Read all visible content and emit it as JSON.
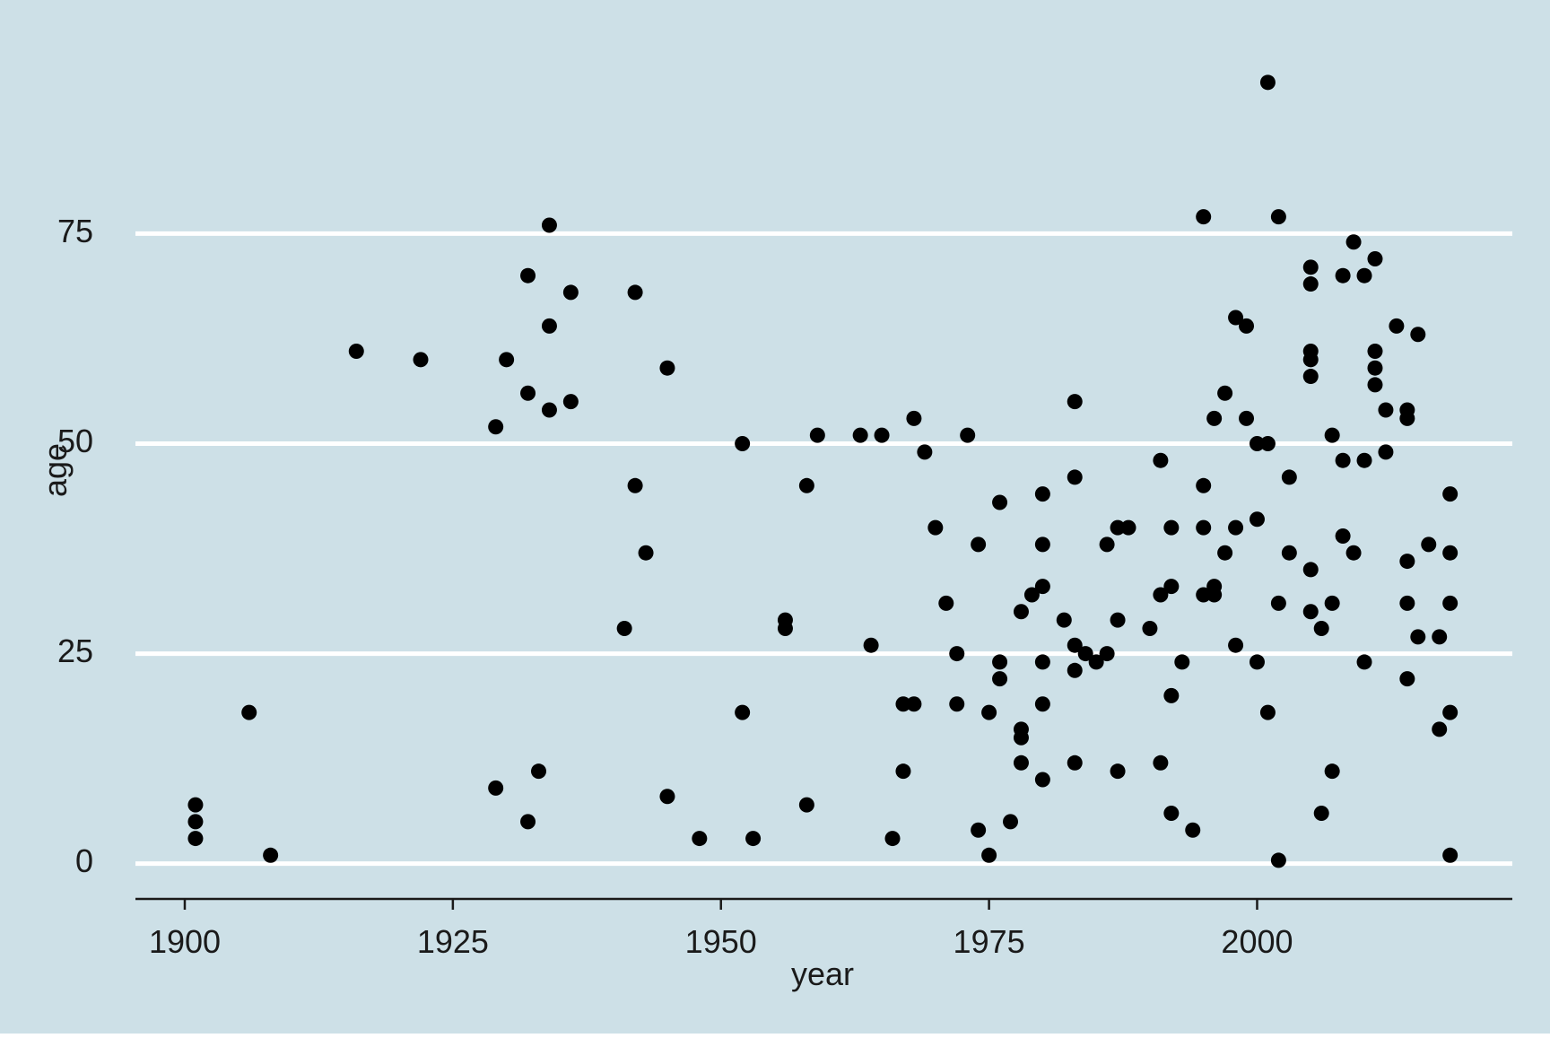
{
  "chart_data": {
    "type": "scatter",
    "x_label": "year",
    "y_label": "age",
    "color": "#000000",
    "background": "#cde0e7",
    "grid": true,
    "xlim": [
      1895.4,
      2023.8
    ],
    "ylim": [
      -4.2,
      98
    ],
    "xticks": [
      1900,
      1925,
      1950,
      1975,
      2000
    ],
    "yticks": [
      0,
      25,
      50,
      75
    ],
    "series": [
      {
        "name": "age",
        "x": [
          1901,
          1901,
          1901,
          1906,
          1908,
          1916,
          1922,
          1929,
          1929,
          1930,
          1932,
          1932,
          1932,
          1933,
          1934,
          1934,
          1934,
          1936,
          1936,
          1941,
          1942,
          1942,
          1943,
          1945,
          1945,
          1948,
          1952,
          1952,
          1953,
          1956,
          1956,
          1958,
          1958,
          1959,
          1963,
          1964,
          1965,
          1966,
          1967,
          1967,
          1968,
          1968,
          1969,
          1970,
          1971,
          1972,
          1972,
          1973,
          1974,
          1974,
          1975,
          1975,
          1976,
          1976,
          1976,
          1977,
          1978,
          1978,
          1978,
          1978,
          1979,
          1980,
          1980,
          1980,
          1980,
          1980,
          1980,
          1982,
          1983,
          1983,
          1983,
          1983,
          1983,
          1984,
          1985,
          1986,
          1986,
          1987,
          1987,
          1987,
          1988,
          1990,
          1991,
          1991,
          1991,
          1992,
          1992,
          1992,
          1992,
          1993,
          1994,
          1995,
          1995,
          1995,
          1995,
          1996,
          1996,
          1996,
          1997,
          1997,
          1998,
          1998,
          1998,
          1999,
          1999,
          2000,
          2000,
          2000,
          2001,
          2001,
          2001,
          2002,
          2002,
          2002,
          2003,
          2003,
          2005,
          2005,
          2005,
          2005,
          2005,
          2005,
          2005,
          2006,
          2006,
          2007,
          2007,
          2007,
          2008,
          2008,
          2008,
          2009,
          2009,
          2010,
          2010,
          2010,
          2011,
          2011,
          2011,
          2011,
          2012,
          2012,
          2013,
          2014,
          2014,
          2014,
          2014,
          2014,
          2015,
          2015,
          2016,
          2017,
          2017,
          2018,
          2018,
          2018,
          2018,
          2018
        ],
        "values": [
          7,
          5,
          3,
          18,
          1,
          61,
          60,
          52,
          9,
          60,
          70,
          56,
          5,
          11,
          76,
          64,
          54,
          68,
          55,
          28,
          68,
          45,
          37,
          59,
          8,
          3,
          50,
          18,
          3,
          29,
          28,
          45,
          7,
          51,
          51,
          26,
          51,
          3,
          19,
          11,
          19,
          53,
          49,
          40,
          31,
          25,
          19,
          51,
          38,
          4,
          18,
          1,
          43,
          24,
          22,
          5,
          30,
          16,
          15,
          12,
          32,
          44,
          38,
          33,
          24,
          19,
          10,
          29,
          55,
          46,
          26,
          23,
          12,
          25,
          24,
          38,
          25,
          40,
          29,
          11,
          40,
          28,
          48,
          32,
          12,
          40,
          33,
          20,
          6,
          24,
          4,
          77,
          45,
          40,
          32,
          53,
          33,
          32,
          56,
          37,
          65,
          40,
          26,
          64,
          53,
          50,
          41,
          24,
          93,
          50,
          18,
          77,
          31,
          0.4,
          46,
          37,
          71,
          69,
          61,
          60,
          58,
          35,
          30,
          28,
          6,
          51,
          31,
          11,
          70,
          48,
          39,
          74,
          37,
          70,
          48,
          24,
          72,
          61,
          59,
          57,
          54,
          49,
          64,
          54,
          53,
          36,
          31,
          22,
          63,
          27,
          38,
          27,
          16,
          44,
          37,
          31,
          18,
          1
        ]
      }
    ]
  }
}
